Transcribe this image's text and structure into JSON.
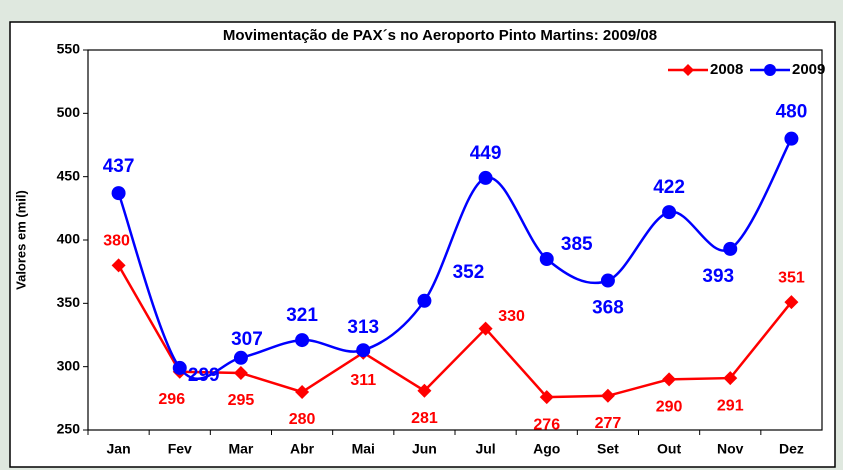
{
  "chart_data": {
    "type": "line",
    "title": "Movimentação de PAX´s no Aeroporto Pinto Martins: 2009/08",
    "y_label": "Valores em (mil)",
    "categories": [
      "Jan",
      "Fev",
      "Mar",
      "Abr",
      "Mai",
      "Jun",
      "Jul",
      "Ago",
      "Set",
      "Out",
      "Nov",
      "Dez"
    ],
    "series": [
      {
        "name": "2008",
        "color": "#ff0000",
        "marker": "diamond",
        "smooth": false,
        "values": [
          380,
          296,
          295,
          280,
          311,
          281,
          330,
          276,
          277,
          290,
          291,
          351
        ]
      },
      {
        "name": "2009",
        "color": "#0000ff",
        "marker": "circle",
        "smooth": true,
        "values": [
          437,
          299,
          307,
          321,
          313,
          352,
          449,
          385,
          368,
          422,
          393,
          480
        ]
      }
    ],
    "ylim": [
      250,
      550
    ],
    "yticks": [
      250,
      300,
      350,
      400,
      450,
      500,
      550
    ],
    "grid": false,
    "legend": "upper right"
  }
}
